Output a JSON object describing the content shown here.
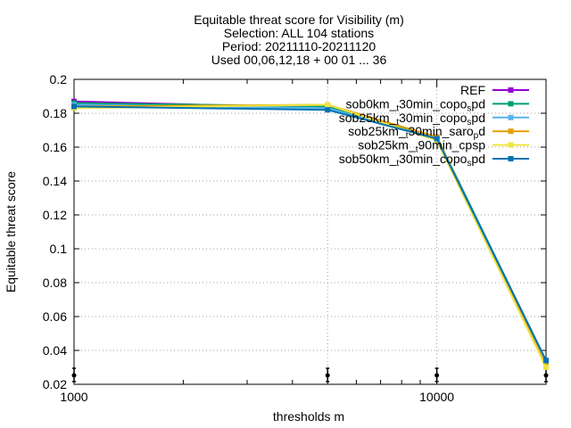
{
  "chart_data": {
    "type": "line",
    "title_lines": [
      "Equitable threat score  for Visibility (m)",
      "Selection: ALL    104 stations",
      "Period: 20211110-20211120",
      "Used 00,06,12,18 + 00 01 ... 36"
    ],
    "xlabel": "thresholds m",
    "ylabel": "Equitable threat score",
    "x_scale": "log",
    "xlim": [
      1000,
      20000
    ],
    "ylim": [
      0.02,
      0.2
    ],
    "x_ticks": [
      {
        "value": 1000,
        "label": "1000"
      },
      {
        "value": 10000,
        "label": "10000"
      }
    ],
    "x_minor_ticks": [
      2000,
      3000,
      4000,
      5000,
      6000,
      7000,
      8000,
      9000,
      20000
    ],
    "x_grid": [
      5000,
      10000
    ],
    "y_ticks": [
      0.02,
      0.04,
      0.06,
      0.08,
      0.1,
      0.12,
      0.14,
      0.16,
      0.18,
      0.2
    ],
    "y_tick_labels": [
      "0.02",
      "0.04",
      "0.06",
      "0.08",
      "0.1",
      "0.12",
      "0.14",
      "0.16",
      "0.18",
      "0.2"
    ],
    "grid": true,
    "legend_position": "top-right",
    "x": [
      1000,
      5000,
      10000,
      20000
    ],
    "series": [
      {
        "name": "REF",
        "name_sub": [],
        "color": "#9400d3",
        "values": [
          0.187,
          0.183,
          0.165,
          0.034
        ]
      },
      {
        "name": "sob0km_dt30min_copolspd",
        "name_sub": [
          7,
          19
        ],
        "color": "#009e73",
        "values": [
          0.186,
          0.184,
          0.166,
          0.034
        ]
      },
      {
        "name": "sob25km_dt30min_copolspd",
        "name_sub": [
          8,
          20
        ],
        "color": "#56b4e9",
        "values": [
          0.185,
          0.183,
          0.165,
          0.034
        ]
      },
      {
        "name": "sob25km_dt30min_sarospd",
        "name_sub": [
          8,
          20
        ],
        "color": "#e69f00",
        "values": [
          0.184,
          0.185,
          0.166,
          0.031
        ]
      },
      {
        "name": "sob25km_dt90min_cpspd",
        "name_sub": [
          8,
          20
        ],
        "color": "#f0e442",
        "values": [
          0.183,
          0.185,
          0.164,
          0.03
        ]
      },
      {
        "name": "sob50km_dt30min_copolspd",
        "name_sub": [
          8,
          20
        ],
        "color": "#0072b2",
        "values": [
          0.184,
          0.182,
          0.165,
          0.034
        ]
      }
    ],
    "samples_axis_markers": [
      1000,
      5000,
      10000,
      20000
    ]
  }
}
